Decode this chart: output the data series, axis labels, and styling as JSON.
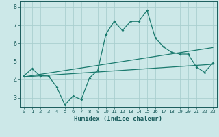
{
  "x": [
    0,
    1,
    2,
    3,
    4,
    5,
    6,
    7,
    8,
    9,
    10,
    11,
    12,
    13,
    14,
    15,
    16,
    17,
    18,
    19,
    20,
    21,
    22,
    23
  ],
  "y_main": [
    4.2,
    4.6,
    4.2,
    4.2,
    3.6,
    2.6,
    3.1,
    2.9,
    4.1,
    4.5,
    6.5,
    7.2,
    6.7,
    7.2,
    7.2,
    7.8,
    6.3,
    5.8,
    5.5,
    5.4,
    5.4,
    4.7,
    4.4,
    4.9
  ],
  "y_trend1": [
    4.15,
    4.22,
    4.29,
    4.36,
    4.43,
    4.5,
    4.57,
    4.64,
    4.71,
    4.78,
    4.85,
    4.92,
    4.99,
    5.06,
    5.13,
    5.2,
    5.27,
    5.34,
    5.41,
    5.48,
    5.55,
    5.62,
    5.69,
    5.76
  ],
  "y_trend2": [
    4.15,
    4.18,
    4.21,
    4.24,
    4.27,
    4.3,
    4.33,
    4.36,
    4.39,
    4.42,
    4.45,
    4.48,
    4.51,
    4.54,
    4.57,
    4.6,
    4.63,
    4.66,
    4.69,
    4.72,
    4.75,
    4.78,
    4.81,
    4.84
  ],
  "line_color": "#1a7a6e",
  "bg_color": "#cce8e8",
  "grid_color": "#aacfcf",
  "xlabel": "Humidex (Indice chaleur)",
  "ylim": [
    2.5,
    8.3
  ],
  "xlim": [
    -0.5,
    23.5
  ],
  "yticks": [
    3,
    4,
    5,
    6,
    7,
    8
  ],
  "xticks": [
    0,
    1,
    2,
    3,
    4,
    5,
    6,
    7,
    8,
    9,
    10,
    11,
    12,
    13,
    14,
    15,
    16,
    17,
    18,
    19,
    20,
    21,
    22,
    23
  ]
}
